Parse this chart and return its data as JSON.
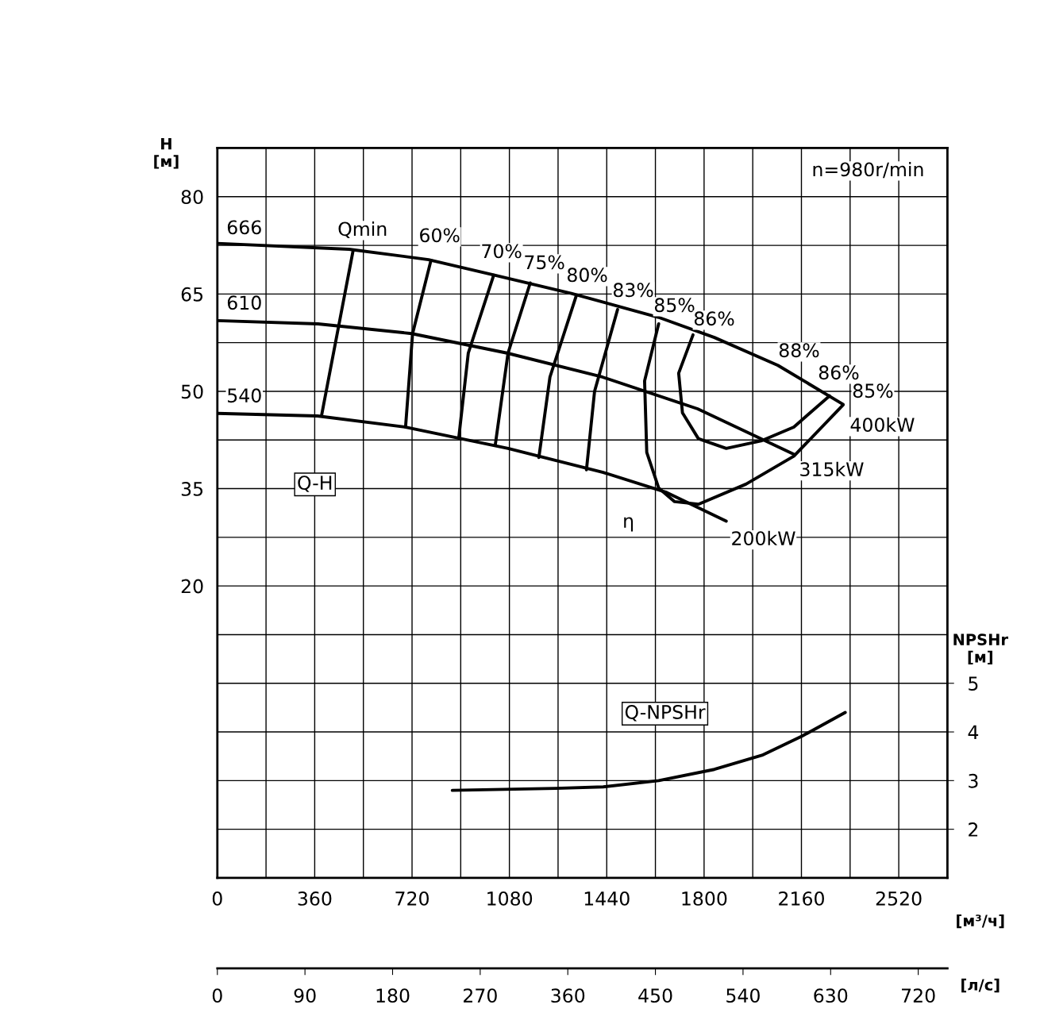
{
  "chart_data": {
    "type": "line",
    "xlabel": "[м³/ч]",
    "ylabel": "H\n[м]",
    "y2label": "NPSHr\n[м]",
    "x2label": "[л/с]",
    "xlim": [
      0,
      2700
    ],
    "ylim": [
      -25,
      87.5
    ],
    "y2lim": [
      1,
      16
    ],
    "x2lim": [
      0,
      750
    ],
    "xticks": [
      0,
      {
        "value": 180,
        "label": null
      },
      360,
      {
        "value": 540,
        "label": null
      },
      720,
      {
        "value": 900,
        "label": null
      },
      1080,
      {
        "value": 1260,
        "label": null
      },
      1440,
      {
        "value": 1620,
        "label": null
      },
      1800,
      {
        "value": 1980,
        "label": null
      },
      2160,
      {
        "value": 2340,
        "label": null
      },
      2520,
      {
        "value": 2700,
        "label": null
      }
    ],
    "yticks": [
      {
        "value": -25,
        "label": null
      },
      {
        "value": -17.5,
        "label": null
      },
      {
        "value": -10,
        "label": null
      },
      {
        "value": -2.5,
        "label": null
      },
      {
        "value": 5,
        "label": null
      },
      {
        "value": 12.5,
        "label": null
      },
      20,
      {
        "value": 27.5,
        "label": null
      },
      35,
      {
        "value": 42.5,
        "label": null
      },
      50,
      {
        "value": 57.5,
        "label": null
      },
      65,
      {
        "value": 72.5,
        "label": null
      },
      80,
      {
        "value": 87.5,
        "label": null
      }
    ],
    "y2ticks": [
      2,
      3,
      4,
      5
    ],
    "x2ticks": [
      0,
      90,
      180,
      270,
      360,
      450,
      540,
      630,
      720
    ],
    "grid": true,
    "series": [
      {
        "color": "#000000",
        "x": [
          0,
          487,
          781,
          1016,
          1309,
          1632,
          1838,
          2073,
          2314
        ],
        "values": [
          72.8,
          71.9,
          70.3,
          68.0,
          65.1,
          61.4,
          58.3,
          54.0,
          48.0
        ]
      },
      {
        "color": "#000000",
        "x": [
          0,
          372,
          719,
          1071,
          1424,
          1776,
          2132
        ],
        "values": [
          60.9,
          60.4,
          58.9,
          55.9,
          52.2,
          47.3,
          40.3
        ]
      },
      {
        "color": "#000000",
        "x": [
          0,
          370,
          693,
          1075,
          1427,
          1662,
          1882
        ],
        "values": [
          46.6,
          46.2,
          44.5,
          41.2,
          37.5,
          34.4,
          30.0
        ]
      },
      {
        "color": "#000000",
        "x": [
          502,
          385
        ],
        "values": [
          71.7,
          46.2
        ]
      },
      {
        "color": "#000000",
        "x": [
          790,
          722,
          696
        ],
        "values": [
          70.2,
          58.9,
          44.5
        ]
      },
      {
        "color": "#000000",
        "x": [
          1022,
          928,
          893
        ],
        "values": [
          67.9,
          55.9,
          42.9
        ]
      },
      {
        "color": "#000000",
        "x": [
          1157,
          1075,
          1028
        ],
        "values": [
          66.7,
          55.9,
          41.8
        ]
      },
      {
        "color": "#000000",
        "x": [
          1327,
          1230,
          1189
        ],
        "values": [
          64.7,
          52.2,
          39.8
        ]
      },
      {
        "color": "#000000",
        "x": [
          1480,
          1395,
          1365
        ],
        "values": [
          62.6,
          50.0,
          37.9
        ]
      },
      {
        "color": "#000000",
        "x": [
          1632,
          1580,
          1588,
          1632,
          1691,
          1779,
          1955,
          2132,
          2314
        ],
        "values": [
          60.4,
          51.6,
          40.6,
          35.1,
          33.0,
          32.6,
          35.7,
          40.0,
          47.9
        ]
      },
      {
        "color": "#000000",
        "x": [
          1759,
          1706,
          1720,
          1779,
          1882,
          2014,
          2132,
          2264
        ],
        "values": [
          58.7,
          52.8,
          46.7,
          42.7,
          41.2,
          42.4,
          44.5,
          49.3
        ]
      },
      {
        "color": "#000000",
        "axis": "y2",
        "x": [
          869,
          1251,
          1427,
          1632,
          1838,
          2014,
          2161,
          2322
        ],
        "values": [
          2.8,
          2.84,
          2.87,
          3.0,
          3.23,
          3.52,
          3.91,
          4.4
        ]
      }
    ],
    "annotations": [
      "n=980r/min",
      "666",
      "610",
      "540",
      "Qmin",
      "60%",
      "70%",
      "75%",
      "80%",
      "83%",
      "85%",
      "86%",
      "88%",
      "86%",
      "85%",
      "400kW",
      "315kW",
      "200kW",
      "η",
      "Q-H",
      "Q-NPSHr"
    ]
  }
}
